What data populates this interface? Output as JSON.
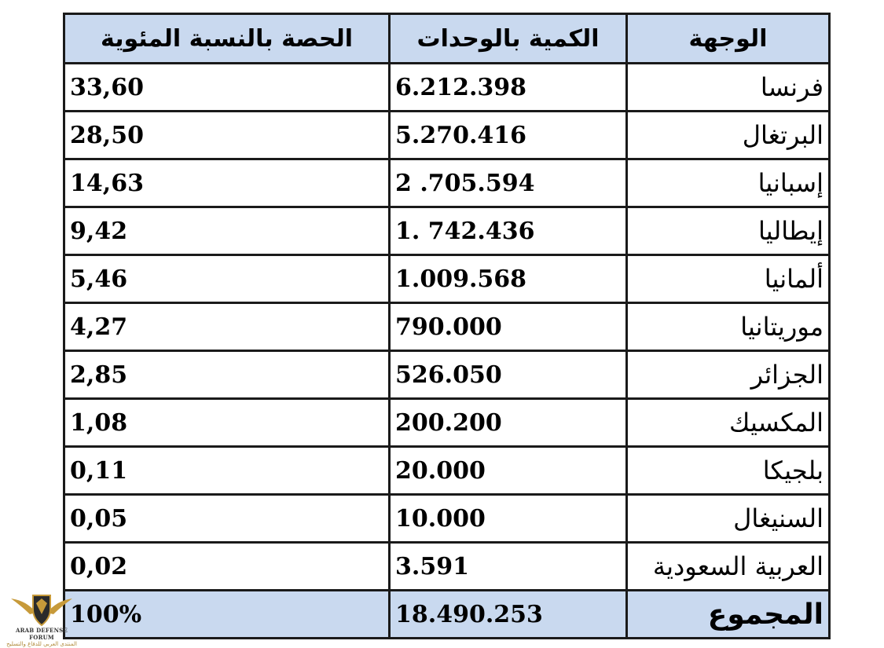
{
  "table": {
    "headers": {
      "destination": "الوجهة",
      "quantity": "الكمية بالوحدات",
      "share": "الحصة بالنسبة المئوية"
    },
    "rows": [
      {
        "destination": "فرنسا",
        "quantity": "6.212.398",
        "share": "33,60"
      },
      {
        "destination": "البرتغال",
        "quantity": "5.270.416",
        "share": "28,50"
      },
      {
        "destination": "إسبانيا",
        "quantity": "2 .705.594",
        "share": "14,63"
      },
      {
        "destination": "إيطاليا",
        "quantity": "1. 742.436",
        "share": "9,42"
      },
      {
        "destination": "ألمانيا",
        "quantity": "1.009.568",
        "share": "5,46"
      },
      {
        "destination": "موريتانيا",
        "quantity": "790.000",
        "share": "4,27"
      },
      {
        "destination": "الجزائر",
        "quantity": "526.050",
        "share": "2,85"
      },
      {
        "destination": "المكسيك",
        "quantity": "200.200",
        "share": "1,08"
      },
      {
        "destination": "بلجيكا",
        "quantity": "20.000",
        "share": "0,11"
      },
      {
        "destination": "السنيغال",
        "quantity": "10.000",
        "share": "0,05"
      },
      {
        "destination": "العربية السعودية",
        "quantity": "3.591",
        "share": "0,02"
      }
    ],
    "total": {
      "destination": "المجموع",
      "quantity": "18.490.253",
      "share": "100%"
    }
  },
  "watermark": {
    "line1": "ARAB DEFENSE FORUM",
    "line2": "المنتدى العربي للدفاع والتسليح"
  },
  "colors": {
    "header_fill": "#c9d9ef",
    "border": "#1a1a1a"
  },
  "icons": {
    "logo": "winged-shield-logo-icon"
  }
}
